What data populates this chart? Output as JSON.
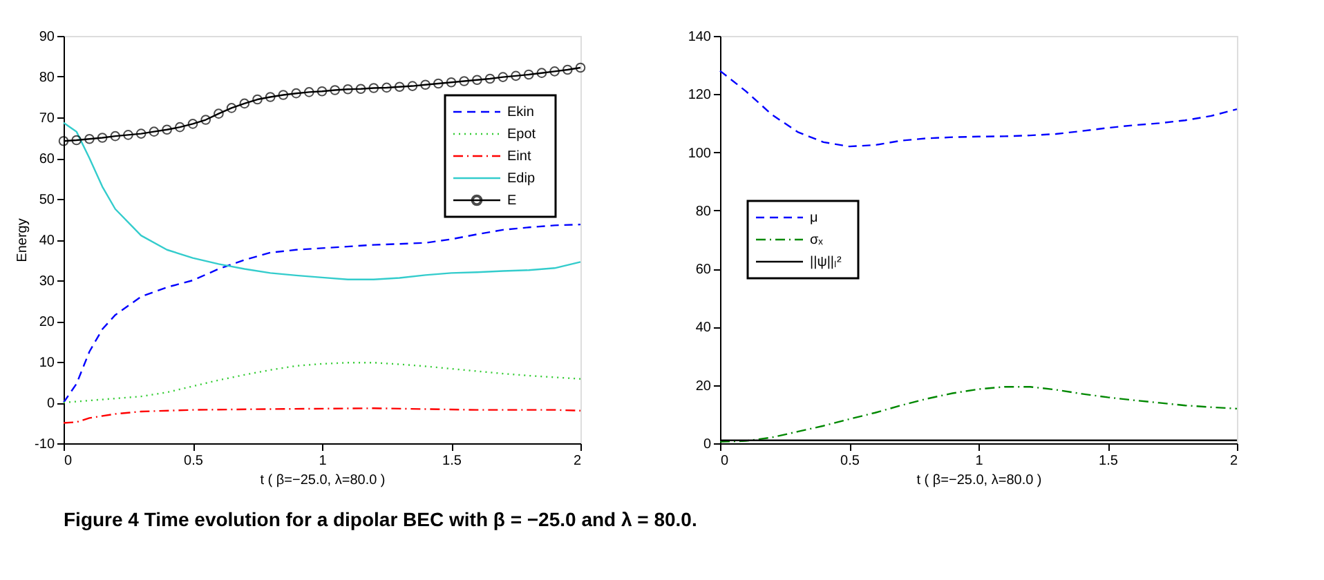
{
  "chart_data": [
    {
      "type": "line",
      "xlabel": "t     ( β=−25.0, λ=80.0 )",
      "ylabel": "Energy",
      "xlim": [
        0,
        2
      ],
      "xticks": [
        0,
        0.5,
        1,
        1.5,
        2
      ],
      "ylim": [
        -10,
        90
      ],
      "yticks": [
        -10,
        0,
        10,
        20,
        30,
        40,
        50,
        60,
        70,
        80,
        90
      ],
      "grid": false,
      "legend": "top right",
      "annotations": [
        "Figure 4 Time evolution for a dipolar BEC with β = −25.0 and λ = 80.0."
      ],
      "series": [
        {
          "name": "Ekin",
          "color": "#0000ff",
          "line_style": "dashed",
          "x": [
            0,
            0.05,
            0.1,
            0.15,
            0.2,
            0.3,
            0.4,
            0.5,
            0.6,
            0.7,
            0.8,
            0.9,
            1.0,
            1.2,
            1.4,
            1.5,
            1.6,
            1.7,
            1.8,
            1.9,
            2.0
          ],
          "values": [
            0,
            4.6,
            12.5,
            18,
            21.5,
            26,
            28.3,
            30,
            32.8,
            35,
            36.8,
            37.5,
            37.9,
            38.7,
            39.2,
            40.1,
            41.3,
            42.4,
            43,
            43.5,
            43.7
          ]
        },
        {
          "name": "Epot",
          "color": "#33cc33",
          "line_style": "dotted",
          "x": [
            0,
            0.2,
            0.3,
            0.4,
            0.5,
            0.6,
            0.7,
            0.8,
            0.9,
            1.0,
            1.1,
            1.2,
            1.3,
            1.4,
            1.5,
            1.6,
            1.7,
            1.8,
            1.9,
            2.0
          ],
          "values": [
            0,
            1,
            1.5,
            2.5,
            4,
            5.5,
            6.8,
            8,
            9,
            9.5,
            9.8,
            9.8,
            9.4,
            8.9,
            8.3,
            7.7,
            7.1,
            6.6,
            6.2,
            5.8
          ]
        },
        {
          "name": "Eint",
          "color": "#ff0000",
          "line_style": "dashdot",
          "x": [
            0,
            0.05,
            0.1,
            0.2,
            0.3,
            0.5,
            0.8,
            1.0,
            1.2,
            1.4,
            1.6,
            1.8,
            1.9,
            2.0
          ],
          "values": [
            -5,
            -4.8,
            -3.8,
            -2.8,
            -2.2,
            -1.8,
            -1.6,
            -1.5,
            -1.4,
            -1.6,
            -1.8,
            -1.8,
            -1.8,
            -2
          ]
        },
        {
          "name": "Edip",
          "color": "#33cccc",
          "line_style": "solid",
          "x": [
            0,
            0.05,
            0.1,
            0.15,
            0.2,
            0.3,
            0.4,
            0.5,
            0.6,
            0.7,
            0.8,
            0.9,
            1.0,
            1.1,
            1.2,
            1.3,
            1.4,
            1.5,
            1.6,
            1.7,
            1.8,
            1.9,
            2.0
          ],
          "values": [
            68.7,
            66.5,
            60,
            53,
            47.5,
            41,
            37.5,
            35.5,
            34,
            32.8,
            31.8,
            31.2,
            30.7,
            30.2,
            30.2,
            30.6,
            31.3,
            31.8,
            32,
            32.3,
            32.5,
            33,
            34.5
          ]
        },
        {
          "name": "E",
          "color": "#000000",
          "line_style": "solid",
          "marker": "circle",
          "x": [
            0,
            0.05,
            0.1,
            0.15,
            0.2,
            0.25,
            0.3,
            0.35,
            0.4,
            0.45,
            0.5,
            0.55,
            0.6,
            0.65,
            0.7,
            0.75,
            0.8,
            0.85,
            0.9,
            0.95,
            1.0,
            1.05,
            1.1,
            1.15,
            1.2,
            1.25,
            1.3,
            1.35,
            1.4,
            1.45,
            1.5,
            1.55,
            1.6,
            1.65,
            1.7,
            1.75,
            1.8,
            1.85,
            1.9,
            1.95,
            2.0
          ],
          "values": [
            64.2,
            64.4,
            64.7,
            65.0,
            65.4,
            65.7,
            66.0,
            66.5,
            67.0,
            67.6,
            68.4,
            69.4,
            70.9,
            72.3,
            73.4,
            74.4,
            75.0,
            75.5,
            75.9,
            76.2,
            76.4,
            76.7,
            76.9,
            77.0,
            77.2,
            77.3,
            77.5,
            77.7,
            78.0,
            78.3,
            78.6,
            78.9,
            79.2,
            79.5,
            79.9,
            80.2,
            80.5,
            80.9,
            81.3,
            81.7,
            82.2
          ]
        }
      ]
    },
    {
      "type": "line",
      "xlabel": "t     ( β=−25.0, λ=80.0 )",
      "xlim": [
        0,
        2
      ],
      "xticks": [
        0,
        0.5,
        1,
        1.5,
        2
      ],
      "ylim": [
        0,
        140
      ],
      "yticks": [
        0,
        20,
        40,
        60,
        80,
        100,
        120,
        140
      ],
      "grid": false,
      "legend": "left",
      "series": [
        {
          "name": "μ",
          "color": "#0000ff",
          "line_style": "dashed",
          "x": [
            0,
            0.1,
            0.2,
            0.3,
            0.4,
            0.5,
            0.6,
            0.7,
            0.8,
            0.9,
            1.0,
            1.1,
            1.2,
            1.3,
            1.4,
            1.5,
            1.6,
            1.7,
            1.8,
            1.9,
            2.0
          ],
          "values": [
            128,
            121,
            113,
            107,
            103.5,
            102,
            102.5,
            104,
            104.8,
            105.2,
            105.4,
            105.5,
            105.8,
            106.3,
            107.3,
            108.4,
            109.3,
            110,
            111,
            112.5,
            114.8
          ]
        },
        {
          "name": "σₓ",
          "color": "#008800",
          "line_style": "dashdot",
          "x": [
            0,
            0.1,
            0.2,
            0.3,
            0.4,
            0.5,
            0.6,
            0.7,
            0.8,
            0.9,
            1.0,
            1.1,
            1.2,
            1.3,
            1.4,
            1.5,
            1.6,
            1.7,
            1.8,
            1.9,
            2.0
          ],
          "values": [
            0.5,
            0.8,
            2,
            4,
            6,
            8.3,
            10.5,
            13,
            15.3,
            17.2,
            18.6,
            19.4,
            19.4,
            18.4,
            17,
            15.8,
            14.8,
            13.9,
            13,
            12.4,
            11.9
          ]
        },
        {
          "name": "||ψ||ₗ²",
          "color": "#000000",
          "line_style": "solid",
          "x": [
            0,
            2
          ],
          "values": [
            1,
            1
          ]
        }
      ]
    }
  ]
}
